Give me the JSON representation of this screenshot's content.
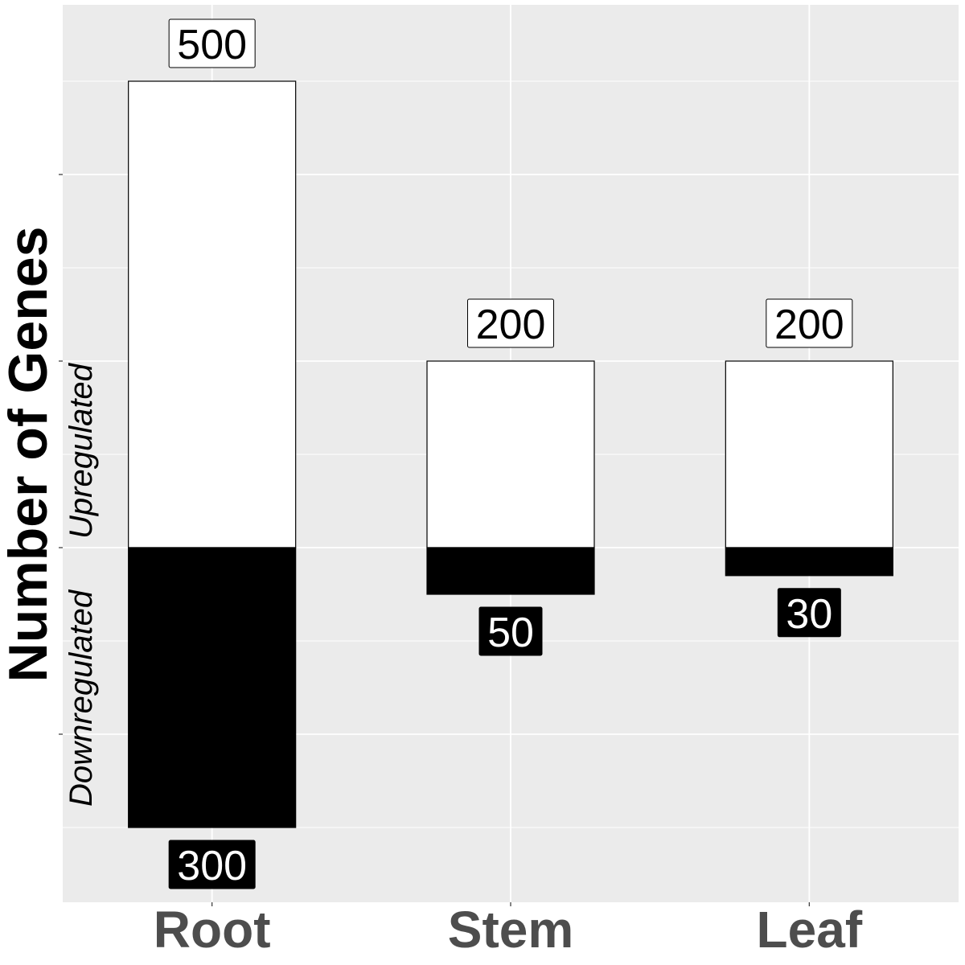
{
  "chart_data": {
    "type": "bar",
    "stacked": true,
    "diverging": true,
    "categories": [
      "Root",
      "Stem",
      "Leaf"
    ],
    "series": [
      {
        "name": "Upregulated",
        "values": [
          500,
          200,
          200
        ],
        "color": "#ffffff",
        "label_bg": "#ffffff",
        "label_color": "#000000"
      },
      {
        "name": "Downregulated",
        "values": [
          -300,
          -50,
          -30
        ],
        "color": "#000000",
        "label_bg": "#000000",
        "label_color": "#ffffff"
      }
    ],
    "data_labels": {
      "up": [
        "500",
        "200",
        "200"
      ],
      "down": [
        "300",
        "50",
        "30"
      ]
    },
    "ylabel": "Number of Genes",
    "ylabel_up": "Upregulated",
    "ylabel_down": "Downregulated",
    "ylim": [
      -380,
      580
    ],
    "y_tick_labels_shown": false,
    "grid": true,
    "panel_color": "#ebebeb",
    "legend": "none"
  }
}
